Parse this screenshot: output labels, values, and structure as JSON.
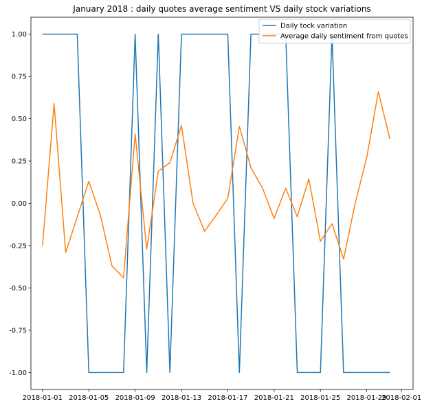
{
  "chart_data": {
    "type": "line",
    "title": "January 2018 : daily quotes average sentiment VS daily stock variations",
    "xlabel": "",
    "ylabel": "",
    "x_ticks": [
      "2018-01-01",
      "2018-01-05",
      "2018-01-09",
      "2018-01-13",
      "2018-01-17",
      "2018-01-21",
      "2018-01-25",
      "2018-01-29",
      "2018-02-01"
    ],
    "y_ticks": [
      "-1.00",
      "-0.75",
      "-0.50",
      "-0.25",
      "0.00",
      "0.25",
      "0.50",
      "0.75",
      "1.00"
    ],
    "xlim": [
      "2017-12-31",
      "2018-02-02"
    ],
    "ylim": [
      -1.1,
      1.1
    ],
    "grid": false,
    "legend_position": "top-right",
    "series": [
      {
        "name": "Daily tock variation",
        "color": "#1f77b4",
        "x": [
          "2018-01-01",
          "2018-01-02",
          "2018-01-03",
          "2018-01-04",
          "2018-01-05",
          "2018-01-06",
          "2018-01-07",
          "2018-01-08",
          "2018-01-09",
          "2018-01-10",
          "2018-01-11",
          "2018-01-12",
          "2018-01-13",
          "2018-01-14",
          "2018-01-15",
          "2018-01-16",
          "2018-01-17",
          "2018-01-18",
          "2018-01-19",
          "2018-01-20",
          "2018-01-21",
          "2018-01-22",
          "2018-01-23",
          "2018-01-24",
          "2018-01-25",
          "2018-01-26",
          "2018-01-27",
          "2018-01-28",
          "2018-01-29",
          "2018-01-30",
          "2018-01-31"
        ],
        "y": [
          1,
          1,
          1,
          1,
          -1,
          -1,
          -1,
          -1,
          1,
          -1,
          1,
          -1,
          1,
          1,
          1,
          1,
          1,
          -1,
          1,
          1,
          1,
          1,
          -1,
          -1,
          -1,
          1,
          -1,
          -1,
          -1,
          -1,
          -1
        ]
      },
      {
        "name": "Average daily sentiment from quotes",
        "color": "#ff7f0e",
        "x": [
          "2018-01-01",
          "2018-01-02",
          "2018-01-03",
          "2018-01-04",
          "2018-01-05",
          "2018-01-06",
          "2018-01-07",
          "2018-01-08",
          "2018-01-09",
          "2018-01-10",
          "2018-01-11",
          "2018-01-12",
          "2018-01-13",
          "2018-01-14",
          "2018-01-15",
          "2018-01-16",
          "2018-01-17",
          "2018-01-18",
          "2018-01-19",
          "2018-01-20",
          "2018-01-21",
          "2018-01-22",
          "2018-01-23",
          "2018-01-24",
          "2018-01-25",
          "2018-01-26",
          "2018-01-27",
          "2018-01-28",
          "2018-01-29",
          "2018-01-30",
          "2018-01-31"
        ],
        "y": [
          -0.25,
          0.59,
          -0.29,
          -0.08,
          0.13,
          -0.07,
          -0.37,
          -0.44,
          0.41,
          -0.27,
          0.19,
          0.24,
          0.46,
          0.0,
          -0.165,
          -0.07,
          0.03,
          0.455,
          0.21,
          0.09,
          -0.09,
          0.09,
          -0.08,
          0.145,
          -0.225,
          -0.12,
          -0.33,
          0.0,
          0.27,
          0.66,
          0.38
        ]
      }
    ]
  }
}
